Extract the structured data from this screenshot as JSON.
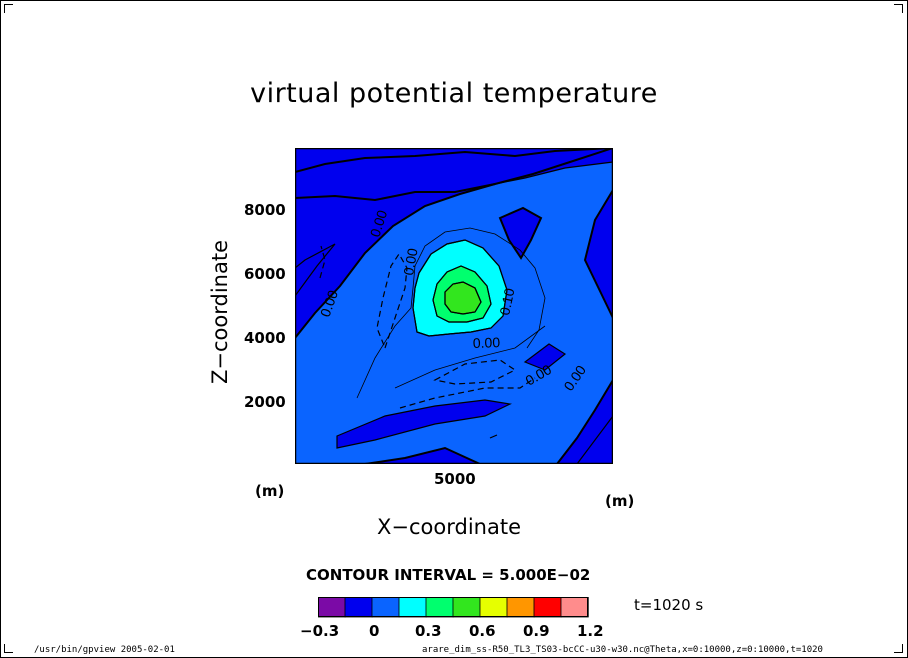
{
  "chart_data": {
    "type": "contour",
    "title": "virtual potential temperature",
    "xlabel": "X−coordinate",
    "ylabel": "Z−coordinate",
    "x_unit": "(m)",
    "y_unit": "(m)",
    "x_ticks": [
      "5000"
    ],
    "y_ticks": [
      "2000",
      "4000",
      "6000",
      "8000"
    ],
    "xlim": [
      0,
      10000
    ],
    "ylim": [
      0,
      10000
    ],
    "contour_interval_text": "CONTOUR INTERVAL = 5.000E−02",
    "contour_labels": [
      "0.00",
      "0.00",
      "0.00",
      "0.10",
      "0.00",
      "0.00",
      "0.00"
    ],
    "peak": {
      "x": 5000,
      "z": 5200,
      "value": 0.55
    },
    "colorbar": {
      "colors": [
        "#7b0aa6",
        "#0000ee",
        "#0a64ff",
        "#00ffff",
        "#00ff6e",
        "#32e61e",
        "#e6ff00",
        "#ff9600",
        "#ff0000",
        "#ff8c8c"
      ],
      "tick_labels": [
        "−0.3",
        "0",
        "0.3",
        "0.6",
        "0.9",
        "1.2"
      ],
      "tick_values": [
        -0.3,
        0,
        0.3,
        0.6,
        0.9,
        1.2
      ],
      "range": [
        -0.3,
        1.2
      ]
    },
    "time_label": "t=1020 s"
  },
  "footer": {
    "left": "/usr/bin/gpview  2005-02-01",
    "right": "arare_dim_ss-R50_TL3_TS03-bcCC-u30-w30.nc@Theta,x=0:10000,z=0:10000,t=1020"
  }
}
